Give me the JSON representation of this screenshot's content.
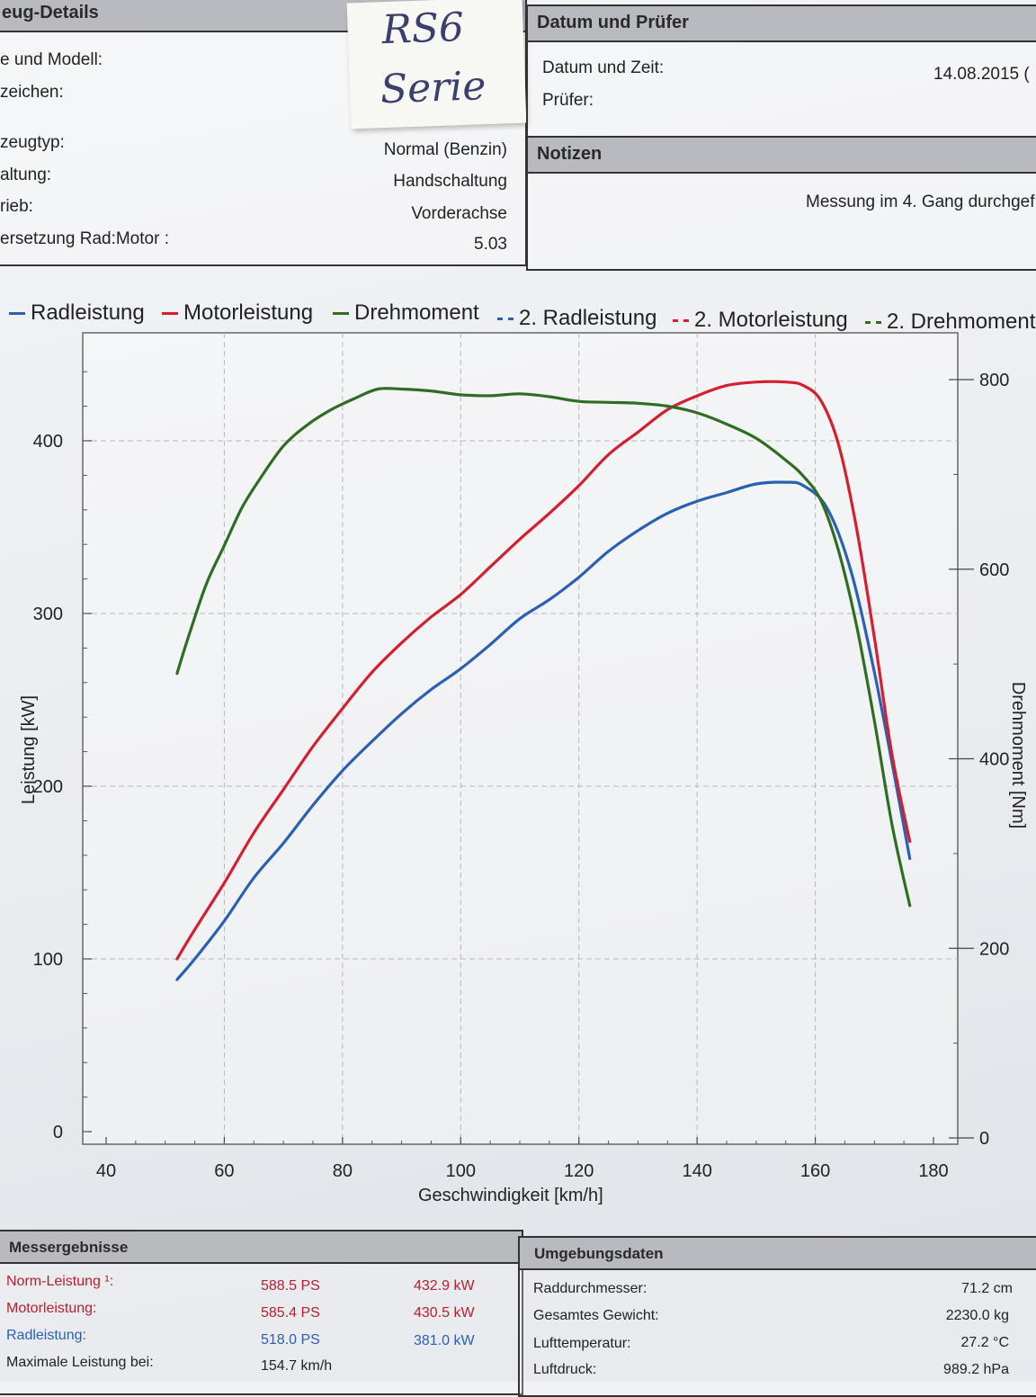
{
  "vehicle": {
    "title": "eug-Details",
    "rows": [
      {
        "label": "e und Modell:",
        "value": ""
      },
      {
        "label": "zeichen:",
        "value": ""
      },
      {
        "label": "zeugtyp:",
        "value": "Normal (Benzin)"
      },
      {
        "label": "altung:",
        "value": "Handschaltung"
      },
      {
        "label": "rieb:",
        "value": "Vorderachse"
      },
      {
        "label": "ersetzung Rad:Motor :",
        "value": "5.03"
      }
    ]
  },
  "note": {
    "line1": "RS6",
    "line2": "Serie"
  },
  "datum": {
    "title": "Datum und Prüfer",
    "datetime_label": "Datum und Zeit:",
    "datetime_value": "14.08.2015 (",
    "pruefer_label": "Prüfer:"
  },
  "notizen": {
    "title": "Notizen",
    "text": "Messung im 4. Gang durchgef"
  },
  "legend": [
    {
      "label": "Radleistung",
      "color": "#2b5fb4",
      "dashed": false
    },
    {
      "label": "Motorleistung",
      "color": "#d41f2f",
      "dashed": false
    },
    {
      "label": "Drehmoment",
      "color": "#2f6e22",
      "dashed": false
    },
    {
      "label": "2. Radleistung",
      "color": "#2b5fb4",
      "dashed": true
    },
    {
      "label": "2. Motorleistung",
      "color": "#d41f2f",
      "dashed": true
    },
    {
      "label": "2. Drehmoment",
      "color": "#2f6e22",
      "dashed": true
    }
  ],
  "chart_data": {
    "type": "line",
    "xlabel": "Geschwindigkeit [km/h]",
    "ylabel": "Leistung [kW]",
    "y2label": "Drehmoment [Nm]",
    "xlim": [
      40,
      180
    ],
    "ylim": [
      0,
      400
    ],
    "y2lim": [
      0,
      800
    ],
    "x_ticks": [
      "40",
      "60",
      "80",
      "100",
      "120",
      "140",
      "160",
      "180"
    ],
    "y_ticks": [
      "0",
      "100",
      "200",
      "300",
      "400"
    ],
    "y2_ticks": [
      "0",
      "200",
      "400",
      "600",
      "800"
    ],
    "grid": true,
    "series": [
      {
        "name": "Radleistung",
        "axis": "left",
        "color": "#2b5fb4",
        "x": [
          52,
          55,
          60,
          65,
          70,
          75,
          80,
          85,
          90,
          95,
          100,
          105,
          110,
          115,
          120,
          125,
          130,
          135,
          140,
          145,
          150,
          155,
          158,
          162,
          166,
          170,
          174,
          176
        ],
        "y": [
          88,
          100,
          122,
          147,
          167,
          189,
          209,
          226,
          242,
          256,
          268,
          282,
          297,
          308,
          321,
          336,
          348,
          358,
          365,
          370,
          375,
          376,
          374,
          361,
          325,
          266,
          195,
          158
        ]
      },
      {
        "name": "Motorleistung",
        "axis": "left",
        "color": "#d41f2f",
        "x": [
          52,
          55,
          60,
          65,
          70,
          75,
          80,
          85,
          90,
          95,
          100,
          105,
          110,
          115,
          120,
          125,
          130,
          135,
          140,
          145,
          150,
          155,
          158,
          161,
          164,
          167,
          170,
          173,
          176
        ],
        "y": [
          100,
          117,
          144,
          173,
          198,
          223,
          245,
          266,
          283,
          298,
          311,
          327,
          343,
          358,
          374,
          392,
          405,
          418,
          426,
          432,
          434,
          434,
          432,
          423,
          397,
          349,
          286,
          218,
          168
        ]
      },
      {
        "name": "Drehmoment",
        "axis": "right",
        "color": "#2f6e22",
        "x": [
          52,
          54,
          57,
          60,
          63,
          66,
          70,
          74,
          78,
          82,
          86,
          90,
          95,
          100,
          105,
          110,
          115,
          120,
          125,
          130,
          135,
          140,
          145,
          150,
          155,
          158,
          161,
          164,
          167,
          170,
          173,
          176
        ],
        "y": [
          490,
          530,
          585,
          625,
          665,
          695,
          730,
          752,
          768,
          780,
          790,
          790,
          788,
          784,
          783,
          785,
          782,
          777,
          776,
          775,
          772,
          765,
          753,
          738,
          715,
          698,
          672,
          618,
          540,
          440,
          330,
          245
        ]
      }
    ]
  },
  "messergebnisse": {
    "title": "Messergebnisse",
    "rows": [
      {
        "label": "Norm-Leistung ¹:",
        "ps": "588.5 PS",
        "kw": "432.9 kW",
        "color": "#b8202c"
      },
      {
        "label": "Motorleistung:",
        "ps": "585.4 PS",
        "kw": "430.5 kW",
        "color": "#b8202c"
      },
      {
        "label": "Radleistung:",
        "ps": "518.0 PS",
        "kw": "381.0 kW",
        "color": "#2b5fb4"
      },
      {
        "label": "Maximale Leistung bei:",
        "ps": "154.7 km/h",
        "kw": "",
        "color": "#222222"
      }
    ]
  },
  "umgebung": {
    "title": "Umgebungsdaten",
    "rows": [
      {
        "label": "Raddurchmesser:",
        "value": "71.2 cm"
      },
      {
        "label": "Gesamtes Gewicht:",
        "value": "2230.0 kg"
      },
      {
        "label": "Lufttemperatur:",
        "value": "27.2 °C"
      },
      {
        "label": "Luftdruck:",
        "value": "989.2 hPa"
      }
    ]
  }
}
